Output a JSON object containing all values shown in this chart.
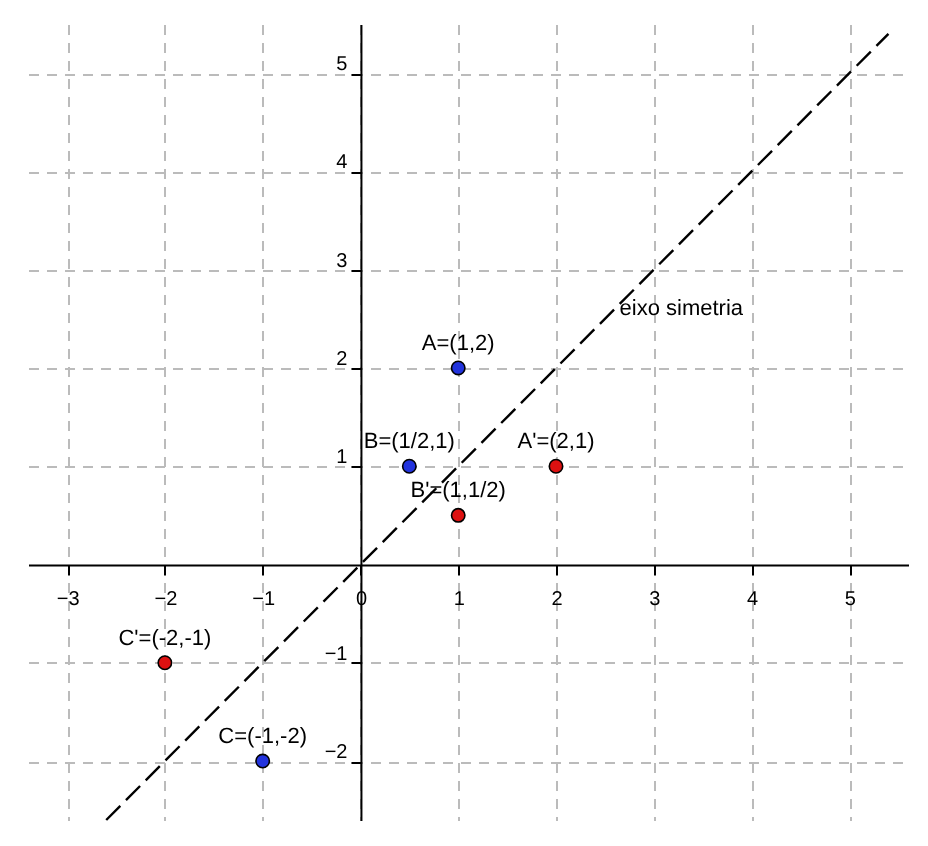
{
  "chart_data": {
    "type": "scatter",
    "xlim": [
      -3.4,
      5.6
    ],
    "ylim": [
      -2.6,
      5.5
    ],
    "xticks": [
      -3,
      -2,
      -1,
      0,
      1,
      2,
      3,
      4,
      5
    ],
    "yticks": [
      -2,
      -1,
      1,
      2,
      3,
      4,
      5
    ],
    "grid": true,
    "marker": "circle",
    "series": [
      {
        "type": "line",
        "color": "#000000",
        "line_style": "dashed",
        "marker": "none",
        "x": [
          -2.6,
          5.4
        ],
        "values": [
          -2.6,
          5.4
        ]
      },
      {
        "color": "#2233dd",
        "x": [
          1,
          0.5,
          -1
        ],
        "values": [
          2,
          1,
          -2
        ]
      },
      {
        "color": "#dd1111",
        "x": [
          2,
          1,
          -2
        ],
        "values": [
          1,
          0.5,
          -1
        ]
      }
    ],
    "annotations": [
      {
        "text": "eixo simetria",
        "x": 2.65,
        "y": 2.6
      },
      {
        "text": "A=(1,2)",
        "x": 1,
        "y": 2
      },
      {
        "text": "B=(1/2,1)",
        "x": 0.5,
        "y": 1
      },
      {
        "text": "C=(-1,-2)",
        "x": -1,
        "y": -2
      },
      {
        "text": "A'=(2,1)",
        "x": 2,
        "y": 1
      },
      {
        "text": "B'=(1,1/2)",
        "x": 1,
        "y": 0.5
      },
      {
        "text": "C'=(-2,-1)",
        "x": -2,
        "y": -1
      }
    ]
  }
}
